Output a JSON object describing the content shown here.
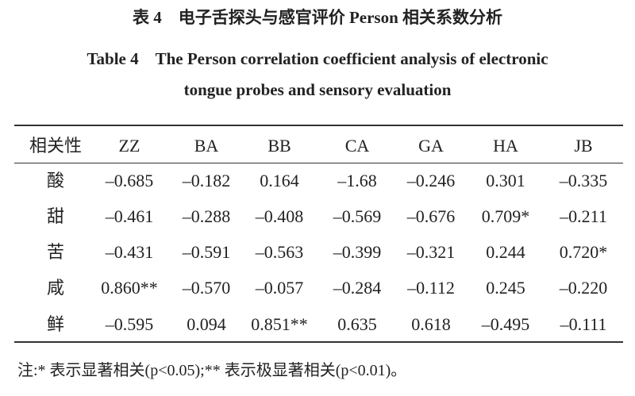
{
  "title_cn": "表 4　电子舌探头与感官评价 Person 相关系数分析",
  "title_en_line1": "Table 4　The Person correlation coefficient analysis of electronic",
  "title_en_line2": "tongue probes and sensory evaluation",
  "table": {
    "headers": [
      "相关性",
      "ZZ",
      "BA",
      "BB",
      "CA",
      "GA",
      "HA",
      "JB"
    ],
    "rows": [
      [
        "酸",
        "–0.685",
        "–0.182",
        "0.164",
        "–1.68",
        "–0.246",
        "0.301",
        "–0.335"
      ],
      [
        "甜",
        "–0.461",
        "–0.288",
        "–0.408",
        "–0.569",
        "–0.676",
        "0.709*",
        "–0.211"
      ],
      [
        "苦",
        "–0.431",
        "–0.591",
        "–0.563",
        "–0.399",
        "–0.321",
        "0.244",
        "0.720*"
      ],
      [
        "咸",
        "0.860**",
        "–0.570",
        "–0.057",
        "–0.284",
        "–0.112",
        "0.245",
        "–0.220"
      ],
      [
        "鲜",
        "–0.595",
        "0.094",
        "0.851**",
        "0.635",
        "0.618",
        "–0.495",
        "–0.111"
      ]
    ]
  },
  "note": "注:* 表示显著相关(p<0.05);** 表示极显著相关(p<0.01)。"
}
